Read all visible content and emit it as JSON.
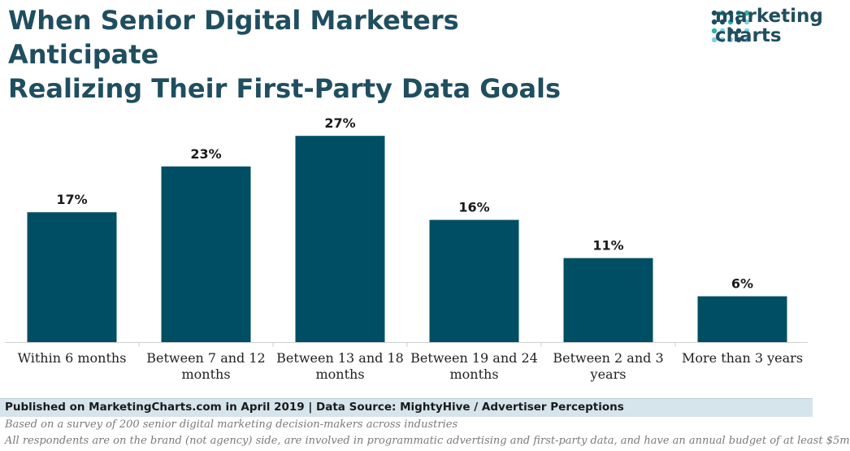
{
  "header": {
    "title_line1": "When Senior Digital Marketers Anticipate",
    "title_line2": "Realizing Their First-Party Data Goals"
  },
  "logo": {
    "line1": "marketing",
    "line2": "charts",
    "dot_colors": [
      "#2bb3a3",
      "#1f4e5f",
      "#7fd0e0"
    ]
  },
  "chart_data": {
    "type": "bar",
    "categories": [
      [
        "Within 6 months"
      ],
      [
        "Between 7 and 12",
        "months"
      ],
      [
        "Between 13 and 18",
        "months"
      ],
      [
        "Between 19 and 24",
        "months"
      ],
      [
        "Between 2 and 3",
        "years"
      ],
      [
        "More than 3 years"
      ]
    ],
    "values": [
      17,
      23,
      27,
      16,
      11,
      6
    ],
    "value_labels": [
      "17%",
      "23%",
      "27%",
      "16%",
      "11%",
      "6%"
    ],
    "unit": "%",
    "ylim": [
      0,
      30
    ],
    "grid": false,
    "bar_color": "#004e64"
  },
  "footer": {
    "published": "Published on MarketingCharts.com in April 2019 | Data Source: MightyHive / Advertiser Perceptions",
    "note1": "Based on a survey of 200 senior digital marketing decision-makers across industries",
    "note2": "All respondents are on the brand (not agency) side, are involved in programmatic advertising and first-party data, and have an annual budget of at least $5m"
  }
}
